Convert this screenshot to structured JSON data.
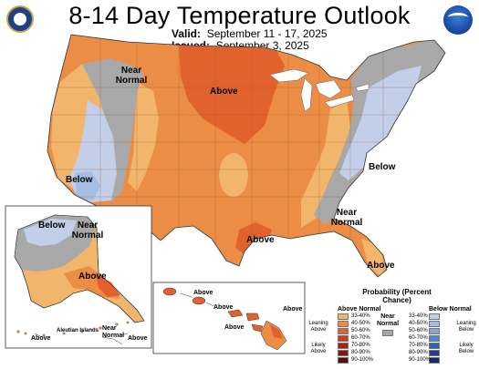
{
  "header": {
    "title": "8-14 Day Temperature Outlook",
    "valid_label": "Valid:",
    "valid_dates": "September 11 - 17, 2025",
    "issued_label": "Issued:",
    "issued_date": "September 3, 2025",
    "left_logo": "doc-seal-icon",
    "right_logo": "noaa-logo-icon"
  },
  "map": {
    "labels": {
      "above_central": "Above",
      "near_normal_west": "Near Normal",
      "below_southwest": "Below",
      "below_east": "Below",
      "near_normal_east": "Near Normal",
      "above_texas": "Above",
      "above_florida": "Above"
    },
    "alaska": {
      "below": "Below",
      "near_normal": "Near Normal",
      "above": "Above",
      "above_aleutian": "Above",
      "aleutian_islands": "Aleutian Islands",
      "near_normal_aleutian": "Near Normal",
      "above_aleutian_east": "Above"
    },
    "hawaii": {
      "above_1": "Above",
      "above_2": "Above",
      "above_3": "Above",
      "above_4": "Above"
    }
  },
  "legend": {
    "title": "Probability (Percent Chance)",
    "above_heading": "Above Normal",
    "near_heading": "Near Normal",
    "below_heading": "Below Normal",
    "leaning_above": "Leaning Above",
    "likely_above": "Likely Above",
    "leaning_below": "Leaning Below",
    "likely_below": "Likely Below",
    "ranges": [
      "33-40%",
      "40-50%",
      "50-60%",
      "60-70%",
      "70-80%",
      "80-90%",
      "90-100%"
    ],
    "above_colors": [
      "#f2b56c",
      "#ec8d45",
      "#e2622d",
      "#cc3a1e",
      "#b01f16",
      "#8a1510",
      "#5c0a08"
    ],
    "below_colors": [
      "#c3cfe9",
      "#a3bde3",
      "#7fa7dc",
      "#4d88cf",
      "#2e62b3",
      "#233f8f",
      "#1a2a68"
    ],
    "near_color": "#a8a8a8"
  }
}
